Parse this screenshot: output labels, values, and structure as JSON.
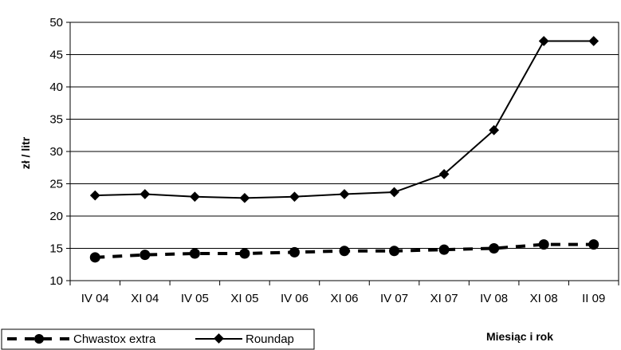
{
  "chart_data": {
    "type": "line",
    "title": "",
    "xlabel": "Miesiąc i rok",
    "ylabel": "zł / litr",
    "ylim": [
      10,
      50
    ],
    "yticks": [
      10,
      15,
      20,
      25,
      30,
      35,
      40,
      45,
      50
    ],
    "grid": "horizontal",
    "legend_position": "bottom-left",
    "categories": [
      "IV 04",
      "XI 04",
      "IV 05",
      "XI 05",
      "IV 06",
      "XI 06",
      "IV 07",
      "XI 07",
      "IV 08",
      "XI 08",
      "II 09"
    ],
    "series": [
      {
        "name": "Chwastox extra",
        "values": [
          13.6,
          14.0,
          14.2,
          14.2,
          14.4,
          14.6,
          14.6,
          14.8,
          15.0,
          15.6,
          15.6
        ],
        "line_style": "dashed",
        "marker": "circle",
        "color": "#000000"
      },
      {
        "name": "Roundap",
        "values": [
          23.2,
          23.4,
          23.0,
          22.8,
          23.0,
          23.4,
          23.7,
          26.5,
          33.3,
          47.1,
          47.1
        ],
        "line_style": "solid",
        "marker": "diamond",
        "color": "#000000"
      }
    ]
  }
}
